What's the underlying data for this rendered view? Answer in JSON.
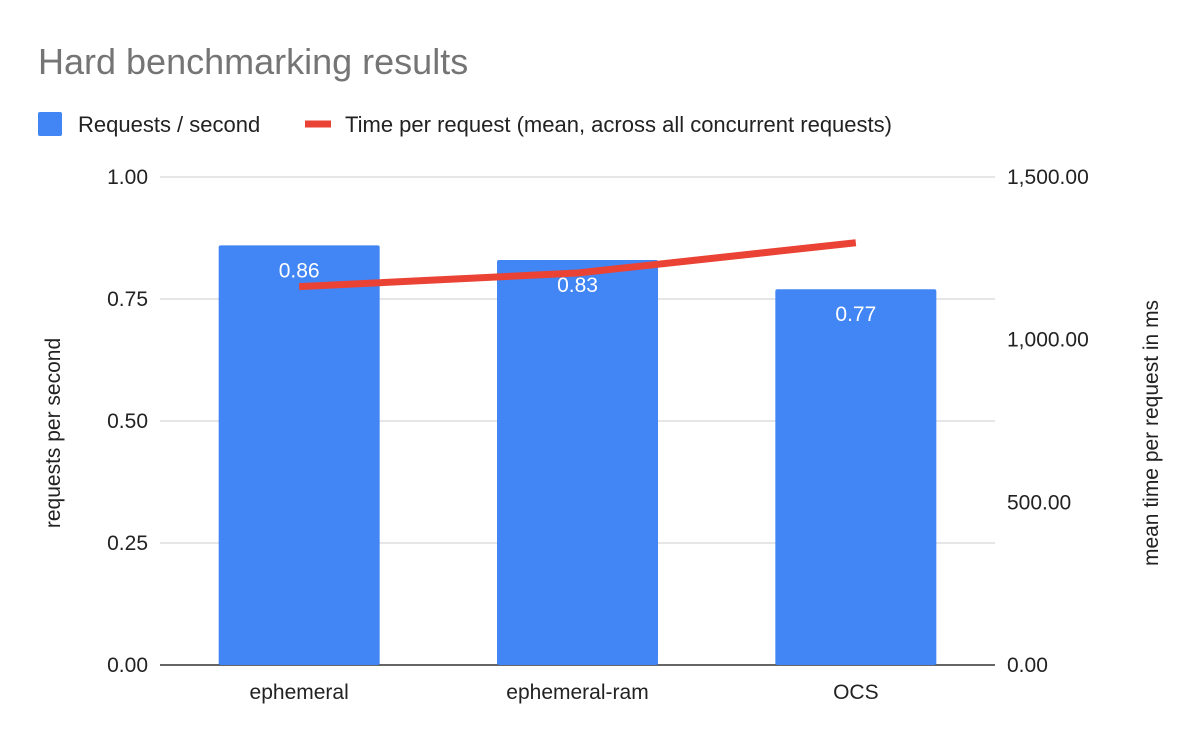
{
  "chart_data": {
    "type": "bar",
    "title": "Hard benchmarking results",
    "categories": [
      "ephemeral",
      "ephemeral-ram",
      "OCS"
    ],
    "series": [
      {
        "name": "Requests / second",
        "type": "bar",
        "axis": "left",
        "color": "#4285f4",
        "values": [
          0.86,
          0.83,
          0.77
        ],
        "data_labels": [
          "0.86",
          "0.83",
          "0.77"
        ]
      },
      {
        "name": "Time per request (mean, across all concurrent requests)",
        "type": "line",
        "axis": "right",
        "color": "#ea4335",
        "values": [
          1163,
          1205,
          1298
        ]
      }
    ],
    "ylabel": "requests per second",
    "y2label": "mean time per request in ms",
    "ylim": [
      0,
      1
    ],
    "y2lim": [
      0,
      1500
    ],
    "yticks": [
      "0.00",
      "0.25",
      "0.50",
      "0.75",
      "1.00"
    ],
    "y2ticks": [
      "0.00",
      "500.00",
      "1,000.00",
      "1,500.00"
    ],
    "grid": true,
    "legend_position": "top-left"
  }
}
